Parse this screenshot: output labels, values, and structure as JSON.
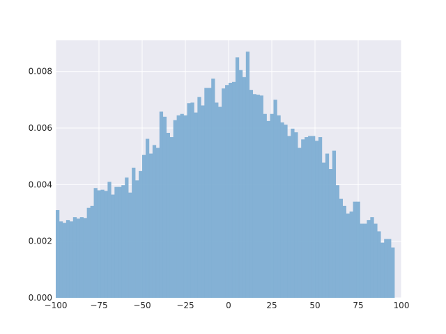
{
  "chart_data": {
    "type": "histogram",
    "title": "",
    "xlabel": "",
    "ylabel": "",
    "xlim": [
      -100,
      100
    ],
    "ylim": [
      0,
      0.0091
    ],
    "grid": true,
    "bar_color": "#7eaed3",
    "plot_background": "#eaeaf2",
    "grid_color": "#ffffff",
    "bin_start": -100,
    "bin_width": 2,
    "x_ticks": [
      {
        "value": -100,
        "label": "−100"
      },
      {
        "value": -75,
        "label": "−75"
      },
      {
        "value": -50,
        "label": "−50"
      },
      {
        "value": -25,
        "label": "−25"
      },
      {
        "value": 0,
        "label": "0"
      },
      {
        "value": 25,
        "label": "25"
      },
      {
        "value": 50,
        "label": "50"
      },
      {
        "value": 75,
        "label": "75"
      },
      {
        "value": 100,
        "label": "100"
      }
    ],
    "y_ticks": [
      {
        "value": 0,
        "label": "0.000"
      },
      {
        "value": 0.002,
        "label": "0.002"
      },
      {
        "value": 0.004,
        "label": "0.004"
      },
      {
        "value": 0.006,
        "label": "0.006"
      },
      {
        "value": 0.008,
        "label": "0.008"
      }
    ],
    "densities": [
      0.0031,
      0.0027,
      0.00265,
      0.00275,
      0.0027,
      0.00285,
      0.0028,
      0.00285,
      0.00282,
      0.00318,
      0.00325,
      0.00388,
      0.0038,
      0.00382,
      0.00378,
      0.0041,
      0.00365,
      0.00392,
      0.00392,
      0.00398,
      0.00425,
      0.00372,
      0.0046,
      0.00415,
      0.00448,
      0.00505,
      0.00562,
      0.0051,
      0.0054,
      0.0053,
      0.00658,
      0.0064,
      0.00583,
      0.00568,
      0.00628,
      0.00645,
      0.0065,
      0.00645,
      0.00688,
      0.0069,
      0.00655,
      0.0071,
      0.0068,
      0.00742,
      0.00742,
      0.00775,
      0.0069,
      0.00675,
      0.0074,
      0.00752,
      0.0076,
      0.00763,
      0.0085,
      0.00805,
      0.0078,
      0.0087,
      0.00735,
      0.0072,
      0.00718,
      0.00715,
      0.0065,
      0.00625,
      0.0065,
      0.007,
      0.00645,
      0.0062,
      0.00612,
      0.00572,
      0.00598,
      0.00585,
      0.0053,
      0.0056,
      0.00568,
      0.00572,
      0.00572,
      0.00555,
      0.00568,
      0.00478,
      0.0051,
      0.00455,
      0.0052,
      0.00398,
      0.0035,
      0.00325,
      0.00298,
      0.00305,
      0.0034,
      0.0034,
      0.00262,
      0.00262,
      0.00275,
      0.00285,
      0.00262,
      0.00235,
      0.00195,
      0.00208,
      0.00208,
      0.00178
    ]
  }
}
